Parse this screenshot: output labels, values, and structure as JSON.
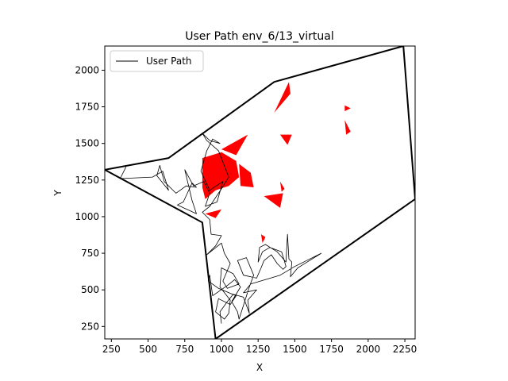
{
  "chart_data": {
    "type": "line",
    "title": "User Path env_6/13_virtual",
    "xlabel": "X",
    "ylabel": "Y",
    "xlim": [
      205,
      2320
    ],
    "ylim": [
      165,
      2165
    ],
    "xticks": [
      250,
      500,
      750,
      1000,
      1250,
      1500,
      1750,
      2000,
      2250
    ],
    "yticks": [
      250,
      500,
      750,
      1000,
      1250,
      1500,
      1750,
      2000
    ],
    "legend": {
      "position": "top-left",
      "entries": [
        "User Path"
      ]
    },
    "grid": false,
    "colors": {
      "boundary": "#000000",
      "path": "#000000",
      "obstacle": "#ff0000"
    },
    "boundary": [
      [
        205,
        1320
      ],
      [
        640,
        1400
      ],
      [
        1360,
        1920
      ],
      [
        2240,
        2165
      ],
      [
        2320,
        1120
      ],
      [
        960,
        165
      ],
      [
        870,
        960
      ],
      [
        205,
        1320
      ]
    ],
    "obstacles": [
      [
        [
          870,
          1400
        ],
        [
          1000,
          1440
        ],
        [
          1100,
          1380
        ],
        [
          1120,
          1270
        ],
        [
          1050,
          1210
        ],
        [
          960,
          1180
        ],
        [
          890,
          1120
        ],
        [
          870,
          1200
        ]
      ],
      [
        [
          1000,
          1460
        ],
        [
          1180,
          1560
        ],
        [
          1100,
          1420
        ]
      ],
      [
        [
          1120,
          1360
        ],
        [
          1200,
          1300
        ],
        [
          1220,
          1200
        ],
        [
          1130,
          1210
        ]
      ],
      [
        [
          1360,
          1710
        ],
        [
          1460,
          1920
        ],
        [
          1470,
          1840
        ]
      ],
      [
        [
          1400,
          1560
        ],
        [
          1480,
          1560
        ],
        [
          1450,
          1490
        ]
      ],
      [
        [
          1290,
          1140
        ],
        [
          1420,
          1160
        ],
        [
          1400,
          1060
        ]
      ],
      [
        [
          1400,
          1240
        ],
        [
          1430,
          1190
        ],
        [
          1410,
          1170
        ]
      ],
      [
        [
          1840,
          1760
        ],
        [
          1880,
          1740
        ],
        [
          1840,
          1720
        ]
      ],
      [
        [
          1840,
          1660
        ],
        [
          1880,
          1580
        ],
        [
          1850,
          1560
        ]
      ],
      [
        [
          890,
          1020
        ],
        [
          1000,
          1050
        ],
        [
          960,
          990
        ]
      ],
      [
        [
          1270,
          880
        ],
        [
          1300,
          860
        ],
        [
          1280,
          820
        ]
      ]
    ],
    "series": [
      {
        "name": "User Path",
        "points": [
          [
            350,
            1340
          ],
          [
            310,
            1260
          ],
          [
            530,
            1270
          ],
          [
            600,
            1310
          ],
          [
            640,
            1180
          ],
          [
            560,
            1280
          ],
          [
            580,
            1350
          ],
          [
            610,
            1240
          ],
          [
            660,
            1190
          ],
          [
            690,
            1160
          ],
          [
            760,
            1210
          ],
          [
            830,
            1200
          ],
          [
            800,
            1230
          ],
          [
            740,
            1100
          ],
          [
            700,
            1080
          ],
          [
            830,
            1020
          ],
          [
            800,
            1110
          ],
          [
            750,
            1320
          ],
          [
            810,
            1210
          ],
          [
            880,
            1240
          ],
          [
            920,
            1160
          ],
          [
            890,
            1070
          ],
          [
            970,
            1100
          ],
          [
            1010,
            1240
          ],
          [
            920,
            1180
          ],
          [
            860,
            1310
          ],
          [
            900,
            1450
          ],
          [
            940,
            1530
          ],
          [
            990,
            1500
          ],
          [
            920,
            1520
          ],
          [
            870,
            1570
          ],
          [
            900,
            1520
          ],
          [
            980,
            1450
          ],
          [
            1050,
            1270
          ],
          [
            1000,
            1190
          ],
          [
            920,
            1070
          ],
          [
            870,
            1030
          ],
          [
            920,
            980
          ],
          [
            930,
            880
          ],
          [
            1000,
            870
          ],
          [
            960,
            800
          ],
          [
            900,
            740
          ],
          [
            1000,
            820
          ],
          [
            1020,
            750
          ],
          [
            1060,
            680
          ],
          [
            1010,
            560
          ],
          [
            1040,
            510
          ],
          [
            1120,
            540
          ],
          [
            1080,
            610
          ],
          [
            1000,
            650
          ],
          [
            990,
            520
          ],
          [
            1060,
            430
          ],
          [
            1050,
            340
          ],
          [
            1020,
            300
          ],
          [
            960,
            350
          ],
          [
            980,
            440
          ],
          [
            1060,
            400
          ],
          [
            1100,
            460
          ],
          [
            980,
            510
          ],
          [
            910,
            560
          ],
          [
            920,
            600
          ],
          [
            940,
            460
          ],
          [
            1040,
            530
          ],
          [
            1090,
            570
          ],
          [
            1130,
            520
          ],
          [
            1070,
            420
          ],
          [
            1110,
            350
          ],
          [
            1120,
            300
          ],
          [
            1190,
            520
          ],
          [
            1220,
            600
          ],
          [
            1170,
            720
          ],
          [
            1110,
            700
          ],
          [
            1150,
            600
          ],
          [
            1240,
            580
          ],
          [
            1270,
            650
          ],
          [
            1290,
            700
          ],
          [
            1340,
            740
          ],
          [
            1380,
            680
          ],
          [
            1420,
            640
          ],
          [
            1440,
            660
          ],
          [
            1410,
            760
          ],
          [
            1330,
            790
          ],
          [
            1280,
            760
          ],
          [
            1250,
            690
          ],
          [
            1260,
            790
          ],
          [
            1300,
            810
          ],
          [
            1380,
            760
          ],
          [
            1440,
            690
          ],
          [
            1450,
            880
          ],
          [
            1460,
            710
          ],
          [
            1480,
            690
          ],
          [
            1470,
            590
          ],
          [
            1520,
            650
          ],
          [
            1680,
            750
          ],
          [
            1580,
            700
          ],
          [
            1500,
            660
          ],
          [
            1400,
            600
          ],
          [
            1300,
            570
          ],
          [
            1200,
            540
          ],
          [
            1150,
            480
          ],
          [
            1240,
            500
          ],
          [
            1180,
            430
          ],
          [
            1190,
            340
          ],
          [
            1150,
            450
          ],
          [
            1080,
            470
          ],
          [
            1040,
            420
          ],
          [
            990,
            350
          ],
          [
            1000,
            270
          ]
        ]
      }
    ]
  }
}
